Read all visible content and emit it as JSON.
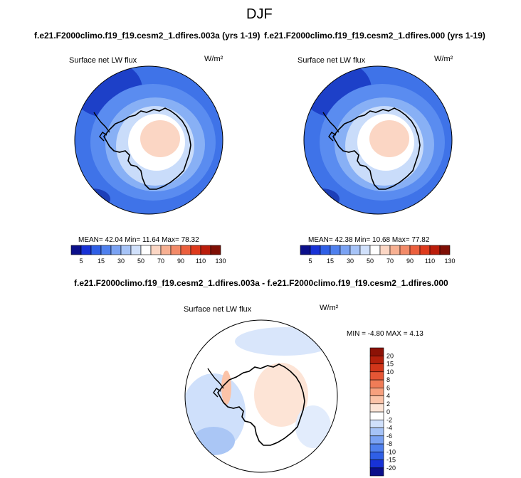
{
  "page": {
    "title": "DJF",
    "header_left": "f.e21.F2000climo.f19_f19.cesm2_1.dfires.003a (yrs 1-19)",
    "header_right": "f.e21.F2000climo.f19_f19.cesm2_1.dfires.000 (yrs 1-19)",
    "diff_header": "f.e21.F2000climo.f19_f19.cesm2_1.dfires.003a - f.e21.F2000climo.f19_f19.cesm2_1.dfires.000"
  },
  "chart_data": [
    {
      "type": "heatmap",
      "projection": "south-polar-stereographic",
      "variable": "Surface net LW flux",
      "units": "W/m²",
      "stats": {
        "mean": "42.04",
        "min": "11.64",
        "max": "78.32"
      },
      "stats_text": "MEAN=  42.04  Min=  11.64  Max=  78.32",
      "colorbar": {
        "levels": [
          5,
          15,
          30,
          50,
          70,
          90,
          110,
          130
        ],
        "level_labels": [
          "5",
          "15",
          "30",
          "50",
          "70",
          "90",
          "110",
          "130"
        ],
        "colors": [
          "#0b0f8a",
          "#1832d6",
          "#2f5fe6",
          "#4f80ee",
          "#7aa2f3",
          "#a6c3f7",
          "#d0e0fb",
          "#ffffff",
          "#fbd6c4",
          "#f7b092",
          "#f28a68",
          "#eb5f3d",
          "#de3a1c",
          "#bb1d0b",
          "#7f0f05"
        ]
      }
    },
    {
      "type": "heatmap",
      "projection": "south-polar-stereographic",
      "variable": "Surface net LW flux",
      "units": "W/m²",
      "stats": {
        "mean": "42.38",
        "min": "10.68",
        "max": "77.82"
      },
      "stats_text": "MEAN=  42.38  Min=  10.68  Max=  77.82",
      "colorbar": {
        "levels": [
          5,
          15,
          30,
          50,
          70,
          90,
          110,
          130
        ],
        "level_labels": [
          "5",
          "15",
          "30",
          "50",
          "70",
          "90",
          "110",
          "130"
        ],
        "colors": [
          "#0b0f8a",
          "#1832d6",
          "#2f5fe6",
          "#4f80ee",
          "#7aa2f3",
          "#a6c3f7",
          "#d0e0fb",
          "#ffffff",
          "#fbd6c4",
          "#f7b092",
          "#f28a68",
          "#eb5f3d",
          "#de3a1c",
          "#bb1d0b",
          "#7f0f05"
        ]
      }
    },
    {
      "type": "heatmap",
      "projection": "south-polar-stereographic",
      "variable": "Surface net LW flux",
      "units": "W/m²",
      "stats": {
        "min": "-4.80",
        "max": "4.13"
      },
      "stats_text": "MIN = -4.80 MAX =  4.13",
      "colorbar": {
        "orientation": "vertical",
        "levels": [
          -20,
          -15,
          -10,
          -8,
          -6,
          -4,
          -2,
          0,
          2,
          4,
          6,
          8,
          10,
          15,
          20
        ],
        "level_labels": [
          "-20",
          "-15",
          "-10",
          "-8",
          "-6",
          "-4",
          "-2",
          "0",
          "2",
          "4",
          "6",
          "8",
          "10",
          "15",
          "20"
        ],
        "colors": [
          "#0b0f8a",
          "#1832d6",
          "#2f5fe6",
          "#4f80ee",
          "#7aa2f3",
          "#a6c3f7",
          "#d0e0fb",
          "#ffffff",
          "#fde4d6",
          "#fbc3a8",
          "#f7a07e",
          "#f07c57",
          "#e65635",
          "#d2361a",
          "#b3200c",
          "#8c1206"
        ]
      }
    }
  ]
}
